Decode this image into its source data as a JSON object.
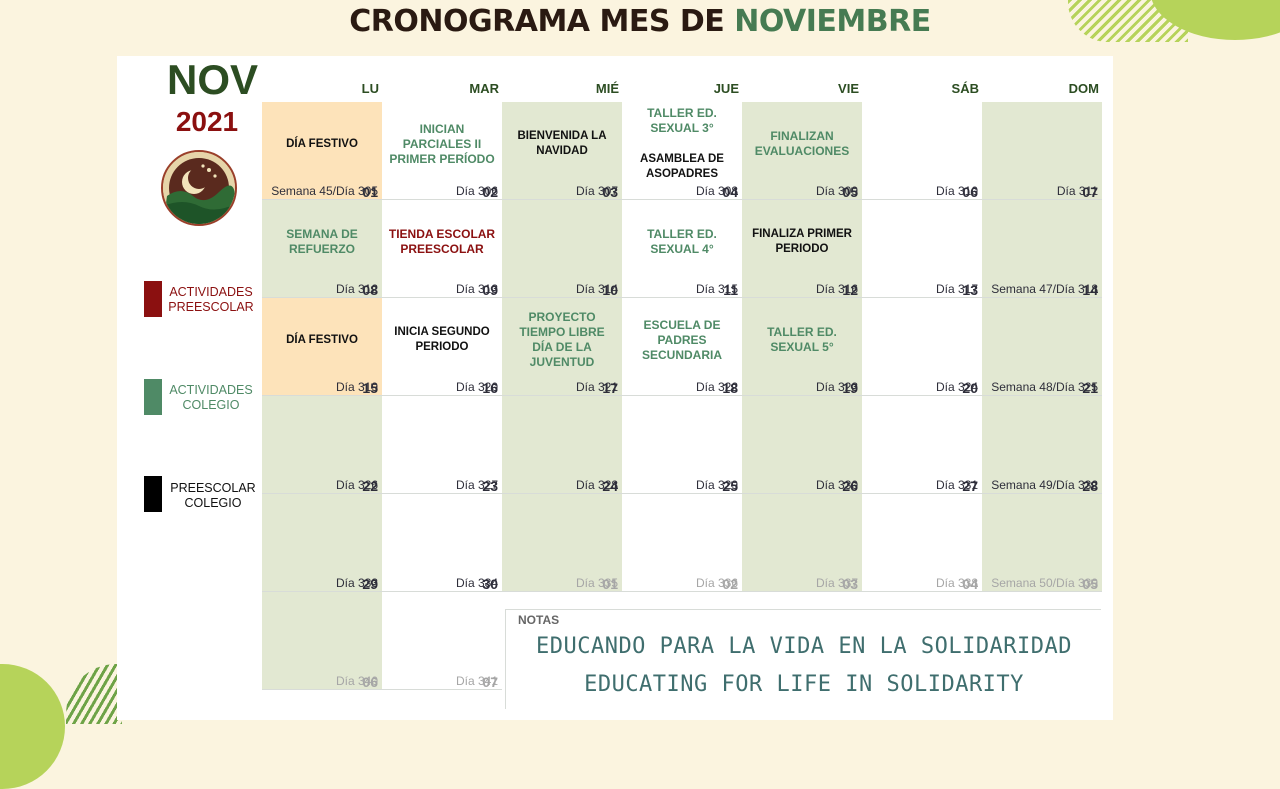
{
  "title": {
    "part1": "CRONOGRAMA MES DE",
    "part2": "NOVIEMBRE"
  },
  "month": "NOV",
  "year": "2021",
  "legend": [
    {
      "label": "ACTIVIDADES PREESCOLAR",
      "color": "#8b1010",
      "text_color": "#8b1010"
    },
    {
      "label": "ACTIVIDADES COLEGIO",
      "color": "#4f8a66",
      "text_color": "#4f8a66"
    },
    {
      "label": "PREESCOLAR COLEGIO",
      "color": "#000000",
      "text_color": "#111111"
    }
  ],
  "weekdays": [
    "LU",
    "MAR",
    "MIÉ",
    "JUE",
    "VIE",
    "SÁB",
    "DOM"
  ],
  "weeks": [
    [
      {
        "num": "01",
        "dia": "Semana 45/Día 305",
        "bg": "o",
        "events": [
          {
            "text": "DÍA FESTIVO",
            "color": "bk"
          }
        ]
      },
      {
        "num": "02",
        "dia": "Día 306",
        "events": [
          {
            "text": "INICIAN PARCIALES II PRIMER PERÍODO",
            "color": "gr"
          }
        ]
      },
      {
        "num": "03",
        "dia": "Día 307",
        "bg": "g",
        "events": [
          {
            "text": "BIENVENIDA LA NAVIDAD",
            "color": "bk"
          }
        ]
      },
      {
        "num": "04",
        "dia": "Día 308",
        "events": [
          {
            "text": "TALLER ED. SEXUAL 3°",
            "color": "gr"
          },
          {
            "text": "ASAMBLEA DE ASOPADRES",
            "color": "bk"
          }
        ]
      },
      {
        "num": "05",
        "dia": "Día 309",
        "bg": "g",
        "events": [
          {
            "text": "FINALIZAN EVALUACIONES",
            "color": "gr"
          }
        ]
      },
      {
        "num": "06",
        "dia": "Día 310",
        "events": []
      },
      {
        "num": "07",
        "dia": "Día 311",
        "bg": "g",
        "events": []
      }
    ],
    [
      {
        "num": "08",
        "dia": "Día 312",
        "bg": "g",
        "events": [
          {
            "text": "SEMANA DE REFUERZO",
            "color": "gr"
          }
        ]
      },
      {
        "num": "09",
        "dia": "Día 313",
        "events": [
          {
            "text": "TIENDA ESCOLAR PREESCOLAR",
            "color": "rd"
          }
        ]
      },
      {
        "num": "10",
        "dia": "Día 314",
        "bg": "g",
        "events": []
      },
      {
        "num": "11",
        "dia": "Día 315",
        "events": [
          {
            "text": "TALLER ED. SEXUAL 4°",
            "color": "gr"
          }
        ]
      },
      {
        "num": "12",
        "dia": "Día 316",
        "bg": "g",
        "events": [
          {
            "text": "FINALIZA PRIMER PERIODO",
            "color": "bk"
          }
        ]
      },
      {
        "num": "13",
        "dia": "Día 317",
        "events": []
      },
      {
        "num": "14",
        "dia": "Semana 47/Día 318",
        "bg": "g",
        "events": []
      }
    ],
    [
      {
        "num": "15",
        "dia": "Día 319",
        "bg": "o",
        "events": [
          {
            "text": "DÍA FESTIVO",
            "color": "bk"
          }
        ]
      },
      {
        "num": "16",
        "dia": "Día 320",
        "events": [
          {
            "text": "INICIA SEGUNDO PERIODO",
            "color": "bk"
          }
        ]
      },
      {
        "num": "17",
        "dia": "Día 321",
        "bg": "g",
        "events": [
          {
            "text": "PROYECTO TIEMPO LIBRE DÍA DE LA JUVENTUD",
            "color": "gr"
          }
        ]
      },
      {
        "num": "18",
        "dia": "Día 322",
        "events": [
          {
            "text": "ESCUELA DE PADRES SECUNDARIA",
            "color": "gr"
          }
        ]
      },
      {
        "num": "19",
        "dia": "Día 323",
        "bg": "g",
        "events": [
          {
            "text": "TALLER ED. SEXUAL 5°",
            "color": "gr"
          }
        ]
      },
      {
        "num": "20",
        "dia": "Día 324",
        "events": []
      },
      {
        "num": "21",
        "dia": "Semana 48/Día 325",
        "bg": "g",
        "events": []
      }
    ],
    [
      {
        "num": "22",
        "dia": "Día 326",
        "bg": "g",
        "events": []
      },
      {
        "num": "23",
        "dia": "Día 327",
        "events": []
      },
      {
        "num": "24",
        "dia": "Día 328",
        "bg": "g",
        "events": []
      },
      {
        "num": "25",
        "dia": "Día 329",
        "events": []
      },
      {
        "num": "26",
        "dia": "Día 330",
        "bg": "g",
        "events": []
      },
      {
        "num": "27",
        "dia": "Día 331",
        "events": []
      },
      {
        "num": "28",
        "dia": "Semana 49/Día 332",
        "bg": "g",
        "events": []
      }
    ],
    [
      {
        "num": "29",
        "dia": "Día 333",
        "bg": "g",
        "events": []
      },
      {
        "num": "30",
        "dia": "Día 334",
        "events": []
      },
      {
        "num": "01",
        "dia": "Día 335",
        "bg": "g",
        "faded": true,
        "events": []
      },
      {
        "num": "02",
        "dia": "Día 336",
        "faded": true,
        "events": []
      },
      {
        "num": "03",
        "dia": "Día 337",
        "bg": "g",
        "faded": true,
        "events": []
      },
      {
        "num": "04",
        "dia": "Día 338",
        "faded": true,
        "events": []
      },
      {
        "num": "05",
        "dia": "Semana 50/Día 339",
        "bg": "g",
        "faded": true,
        "events": []
      }
    ],
    [
      {
        "num": "06",
        "dia": "Día 340",
        "bg": "g",
        "faded": true,
        "events": []
      },
      {
        "num": "07",
        "dia": "Día 341",
        "faded": true,
        "events": []
      }
    ]
  ],
  "notes": {
    "label": "NOTAS",
    "motto_es": "EDUCANDO PARA LA VIDA EN LA SOLIDARIDAD",
    "motto_en": "EDUCATING FOR LIFE IN SOLIDARITY"
  }
}
